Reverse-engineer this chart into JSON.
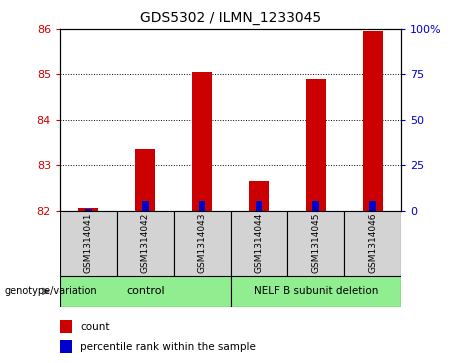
{
  "title": "GDS5302 / ILMN_1233045",
  "samples": [
    "GSM1314041",
    "GSM1314042",
    "GSM1314043",
    "GSM1314044",
    "GSM1314045",
    "GSM1314046"
  ],
  "count_values": [
    82.05,
    83.35,
    85.05,
    82.65,
    84.9,
    85.95
  ],
  "percentile_values": [
    1,
    5,
    5,
    5,
    5,
    5
  ],
  "ylim_left": [
    82,
    86
  ],
  "ylim_right": [
    0,
    100
  ],
  "yticks_left": [
    82,
    83,
    84,
    85,
    86
  ],
  "yticks_right": [
    0,
    25,
    50,
    75,
    100
  ],
  "right_tick_labels": [
    "0",
    "25",
    "50",
    "75",
    "100%"
  ],
  "count_color": "#cc0000",
  "percentile_color": "#0000cc",
  "bg_color": "#d3d3d3",
  "control_color": "#90ee90",
  "deletion_color": "#90ee90",
  "control_label": "control",
  "deletion_label": "NELF B subunit deletion",
  "genotype_label": "genotype/variation",
  "legend_count": "count",
  "legend_percentile": "percentile rank within the sample",
  "fig_width": 4.61,
  "fig_height": 3.63,
  "dpi": 100
}
